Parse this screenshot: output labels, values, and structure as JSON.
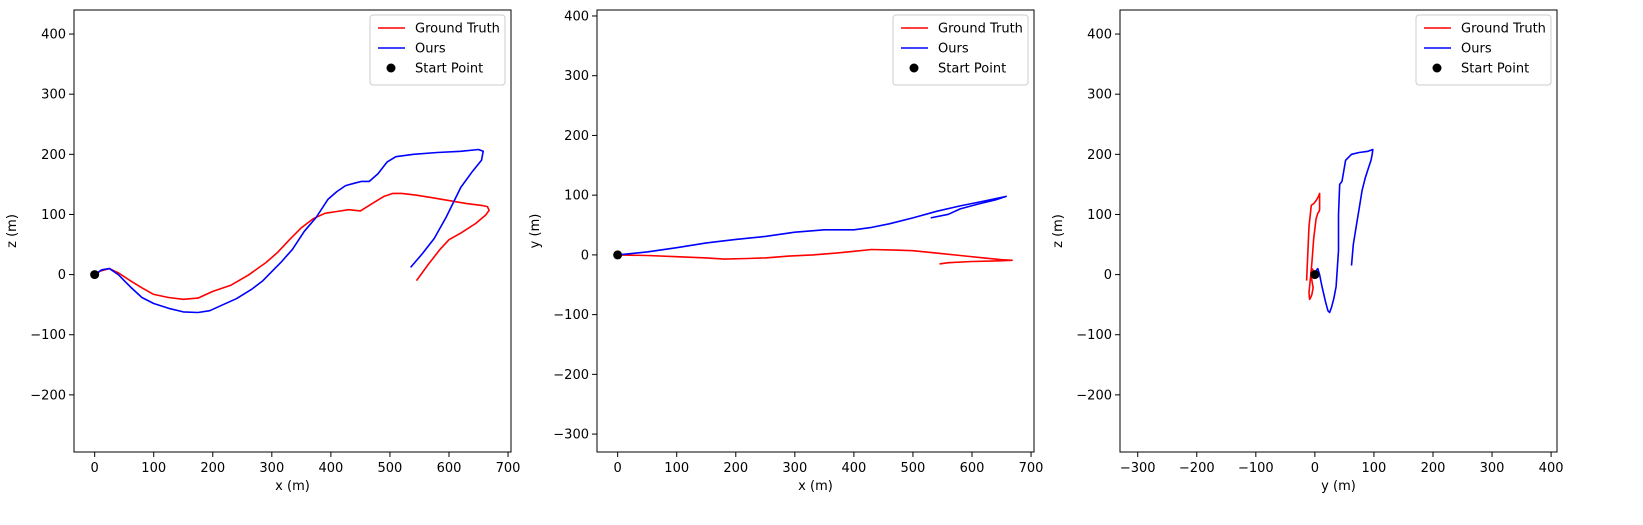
{
  "chart_data": [
    {
      "type": "line",
      "xlabel": "x (m)",
      "ylabel": "z (m)",
      "xlim": [
        -35,
        705
      ],
      "ylim": [
        -295,
        440
      ],
      "xticks": [
        0,
        100,
        200,
        300,
        400,
        500,
        600,
        700
      ],
      "xtick_labels": [
        "0",
        "100",
        "200",
        "300",
        "400",
        "500",
        "600",
        "700"
      ],
      "yticks": [
        -200,
        -100,
        0,
        100,
        200,
        300,
        400
      ],
      "ytick_labels": [
        "−200",
        "−100",
        "0",
        "100",
        "200",
        "300",
        "400"
      ],
      "legend": {
        "placement": "top-right",
        "entries": [
          "Ground Truth",
          "Ours",
          "Start Point"
        ]
      },
      "series": [
        {
          "name": "Ground Truth",
          "color": "#ff0000",
          "x": [
            0,
            10,
            25,
            40,
            60,
            80,
            100,
            125,
            150,
            175,
            200,
            230,
            260,
            290,
            310,
            330,
            350,
            370,
            390,
            410,
            430,
            450,
            470,
            490,
            505,
            520,
            545,
            570,
            600,
            630,
            655,
            665,
            668,
            662,
            645,
            620,
            600,
            585,
            565,
            545
          ],
          "y": [
            0,
            6,
            10,
            3,
            -10,
            -22,
            -33,
            -38,
            -41,
            -39,
            -28,
            -18,
            -1,
            20,
            37,
            58,
            78,
            93,
            102,
            105,
            108,
            106,
            118,
            130,
            135,
            135,
            132,
            128,
            123,
            118,
            115,
            113,
            107,
            99,
            85,
            69,
            58,
            42,
            17,
            -10
          ]
        },
        {
          "name": "Ours",
          "color": "#0000ff",
          "x": [
            0,
            12,
            25,
            40,
            60,
            80,
            100,
            125,
            150,
            175,
            195,
            215,
            240,
            265,
            285,
            300,
            315,
            335,
            355,
            375,
            395,
            410,
            425,
            440,
            452,
            465,
            480,
            495,
            510,
            540,
            580,
            620,
            650,
            658,
            655,
            640,
            620,
            595,
            575,
            555,
            535
          ],
          "y": [
            0,
            8,
            10,
            0,
            -20,
            -38,
            -48,
            -56,
            -62,
            -63,
            -60,
            -51,
            -40,
            -25,
            -10,
            5,
            20,
            42,
            72,
            95,
            125,
            138,
            148,
            152,
            155,
            155,
            168,
            187,
            196,
            200,
            203,
            205,
            208,
            205,
            190,
            172,
            145,
            95,
            60,
            35,
            12
          ]
        }
      ],
      "start_point": {
        "x": 0,
        "y": 0
      }
    },
    {
      "type": "line",
      "xlabel": "x (m)",
      "ylabel": "y (m)",
      "xlim": [
        -35,
        705
      ],
      "ylim": [
        -330,
        410
      ],
      "xticks": [
        0,
        100,
        200,
        300,
        400,
        500,
        600,
        700
      ],
      "xtick_labels": [
        "0",
        "100",
        "200",
        "300",
        "400",
        "500",
        "600",
        "700"
      ],
      "yticks": [
        -300,
        -200,
        -100,
        0,
        100,
        200,
        300,
        400
      ],
      "ytick_labels": [
        "−300",
        "−200",
        "−100",
        "0",
        "100",
        "200",
        "300",
        "400"
      ],
      "legend": {
        "placement": "top-right",
        "entries": [
          "Ground Truth",
          "Ours",
          "Start Point"
        ]
      },
      "series": [
        {
          "name": "Ground Truth",
          "color": "#ff0000",
          "x": [
            0,
            50,
            100,
            150,
            180,
            220,
            250,
            290,
            330,
            370,
            400,
            430,
            470,
            500,
            540,
            580,
            620,
            650,
            668,
            640,
            600,
            560,
            545
          ],
          "y": [
            0,
            -1,
            -3,
            -5,
            -7,
            -6,
            -5,
            -2,
            0,
            3,
            6,
            9,
            8,
            7,
            3,
            -1,
            -5,
            -8,
            -9,
            -10,
            -11,
            -13,
            -15
          ]
        },
        {
          "name": "Ours",
          "color": "#0000ff",
          "x": [
            0,
            50,
            100,
            150,
            200,
            250,
            300,
            350,
            400,
            430,
            460,
            500,
            540,
            580,
            620,
            658,
            640,
            610,
            580,
            560,
            530
          ],
          "y": [
            0,
            5,
            12,
            20,
            26,
            31,
            38,
            42,
            42,
            46,
            52,
            62,
            73,
            82,
            90,
            98,
            92,
            85,
            77,
            68,
            62
          ]
        }
      ],
      "start_point": {
        "x": 0,
        "y": 0
      }
    },
    {
      "type": "line",
      "xlabel": "y (m)",
      "ylabel": "z (m)",
      "xlim": [
        -330,
        410
      ],
      "ylim": [
        -295,
        440
      ],
      "xticks": [
        -300,
        -200,
        -100,
        0,
        100,
        200,
        300,
        400
      ],
      "xtick_labels": [
        "−300",
        "−200",
        "−100",
        "0",
        "100",
        "200",
        "300",
        "400"
      ],
      "yticks": [
        -200,
        -100,
        0,
        100,
        200,
        300,
        400
      ],
      "ytick_labels": [
        "−200",
        "−100",
        "0",
        "100",
        "200",
        "300",
        "400"
      ],
      "legend": {
        "placement": "top-right",
        "entries": [
          "Ground Truth",
          "Ours",
          "Start Point"
        ]
      },
      "series": [
        {
          "name": "Ground Truth",
          "color": "#ff0000",
          "x": [
            0,
            -2,
            -5,
            -7,
            -5,
            -3,
            -5,
            -7,
            -9,
            -10,
            -8,
            -5,
            -2,
            2,
            5,
            7,
            8,
            8,
            7,
            5,
            2,
            -2,
            -6,
            -10,
            -14
          ],
          "y": [
            0,
            6,
            10,
            3,
            -10,
            -22,
            -33,
            -38,
            -41,
            -30,
            -10,
            20,
            60,
            93,
            102,
            105,
            108,
            135,
            132,
            128,
            123,
            118,
            115,
            80,
            -10
          ]
        },
        {
          "name": "Ours",
          "color": "#0000ff",
          "x": [
            0,
            3,
            5,
            8,
            12,
            18,
            22,
            25,
            28,
            32,
            36,
            38,
            40,
            40,
            42,
            46,
            52,
            62,
            75,
            90,
            98,
            97,
            95,
            90,
            85,
            80,
            75,
            70,
            65,
            62
          ],
          "y": [
            0,
            8,
            10,
            0,
            -20,
            -45,
            -60,
            -63,
            -55,
            -40,
            -20,
            10,
            40,
            100,
            150,
            155,
            190,
            200,
            203,
            205,
            208,
            200,
            190,
            175,
            160,
            140,
            110,
            80,
            50,
            15
          ]
        }
      ],
      "start_point": {
        "x": 0,
        "y": 0
      }
    }
  ]
}
